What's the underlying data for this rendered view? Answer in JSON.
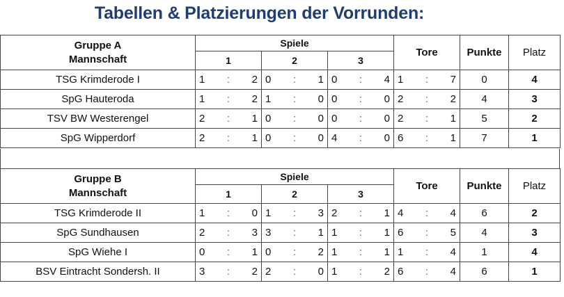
{
  "title": "Tabellen & Platzierungen der Vorrunden:",
  "headers": {
    "team": "Mannschaft",
    "spiele": "Spiele",
    "games": [
      "1",
      "2",
      "3"
    ],
    "tore": "Tore",
    "punkte": "Punkte",
    "platz": "Platz",
    "colon": ":"
  },
  "groups": [
    {
      "name": "Gruppe A",
      "rows": [
        {
          "team": "TSG Krimderode I",
          "g": [
            [
              "1",
              "2"
            ],
            [
              "0",
              "1"
            ],
            [
              "0",
              "4"
            ]
          ],
          "tore": [
            "1",
            "7"
          ],
          "punkte": "0",
          "platz": "4"
        },
        {
          "team": "SpG Hauteroda",
          "g": [
            [
              "1",
              "2"
            ],
            [
              "1",
              "0"
            ],
            [
              "0",
              "0"
            ]
          ],
          "tore": [
            "2",
            "2"
          ],
          "punkte": "4",
          "platz": "3"
        },
        {
          "team": "TSV BW Westerengel",
          "g": [
            [
              "2",
              "1"
            ],
            [
              "0",
              "0"
            ],
            [
              "0",
              "0"
            ]
          ],
          "tore": [
            "2",
            "1"
          ],
          "punkte": "5",
          "platz": "2"
        },
        {
          "team": "SpG Wipperdorf",
          "g": [
            [
              "2",
              "1"
            ],
            [
              "0",
              "0"
            ],
            [
              "4",
              "0"
            ]
          ],
          "tore": [
            "6",
            "1"
          ],
          "punkte": "7",
          "platz": "1"
        }
      ]
    },
    {
      "name": "Gruppe B",
      "rows": [
        {
          "team": "TSG Krimderode II",
          "g": [
            [
              "1",
              "0"
            ],
            [
              "1",
              "3"
            ],
            [
              "2",
              "1"
            ]
          ],
          "tore": [
            "4",
            "4"
          ],
          "punkte": "6",
          "platz": "2"
        },
        {
          "team": "SpG Sundhausen",
          "g": [
            [
              "2",
              "3"
            ],
            [
              "3",
              "1"
            ],
            [
              "1",
              "1"
            ]
          ],
          "tore": [
            "6",
            "5"
          ],
          "punkte": "4",
          "platz": "3"
        },
        {
          "team": "SpG Wiehe I",
          "g": [
            [
              "0",
              "1"
            ],
            [
              "0",
              "2"
            ],
            [
              "1",
              "1"
            ]
          ],
          "tore": [
            "1",
            "4"
          ],
          "punkte": "1",
          "platz": "4"
        },
        {
          "team": "BSV Eintracht Sondersh. II",
          "g": [
            [
              "3",
              "2"
            ],
            [
              "2",
              "0"
            ],
            [
              "1",
              "2"
            ]
          ],
          "tore": [
            "6",
            "4"
          ],
          "punkte": "6",
          "platz": "1"
        }
      ]
    }
  ]
}
